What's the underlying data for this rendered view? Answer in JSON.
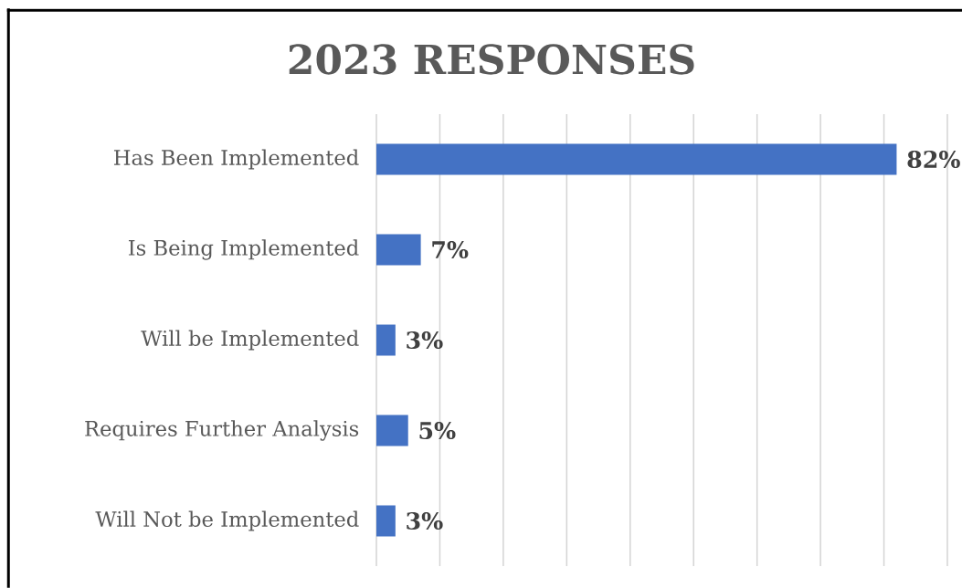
{
  "chart_data": {
    "type": "bar",
    "orientation": "horizontal",
    "title": "2023 RESPONSES",
    "categories": [
      "Has Been Implemented",
      "Is Being Implemented",
      "Will be Implemented",
      "Requires Further Analysis",
      "Will Not be Implemented"
    ],
    "values": [
      82,
      7,
      3,
      5,
      3
    ],
    "value_labels": [
      "82%",
      "7%",
      "3%",
      "5%",
      "3%"
    ],
    "color": "#4472c4",
    "xlim": [
      0,
      90
    ],
    "xticks": [
      {
        "value": 0,
        "label": null
      },
      {
        "value": 10,
        "label": null
      },
      {
        "value": 20,
        "label": null
      },
      {
        "value": 30,
        "label": null
      },
      {
        "value": 40,
        "label": null
      },
      {
        "value": 50,
        "label": null
      },
      {
        "value": 60,
        "label": null
      },
      {
        "value": 70,
        "label": null
      },
      {
        "value": 80,
        "label": null
      },
      {
        "value": 90,
        "label": null
      }
    ],
    "grid": "x",
    "tick_labels": "y"
  }
}
